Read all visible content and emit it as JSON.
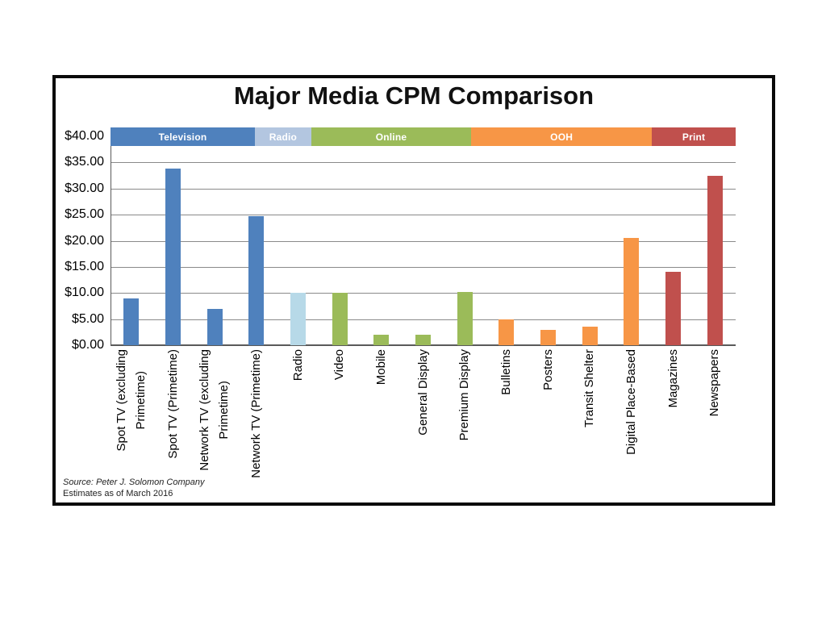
{
  "chart_data": {
    "type": "bar",
    "title": "Major Media CPM Comparison",
    "ylim": [
      0,
      40
    ],
    "y_tick_interval": 5,
    "grid": "horizontal",
    "legend_position": "top-band",
    "y_ticks": [
      {
        "label": "$40.00",
        "value": 40
      },
      {
        "label": "$35.00",
        "value": 35
      },
      {
        "label": "$30.00",
        "value": 30
      },
      {
        "label": "$25.00",
        "value": 25
      },
      {
        "label": "$20.00",
        "value": 20
      },
      {
        "label": "$15.00",
        "value": 15
      },
      {
        "label": "$10.00",
        "value": 10
      },
      {
        "label": "$5.00",
        "value": 5
      },
      {
        "label": "$0.00",
        "value": 0
      }
    ],
    "groups": [
      {
        "name": "Television",
        "band_color": "#4F81BD",
        "bar_color": "#4F81BD",
        "band_width_pct": 23.1
      },
      {
        "name": "Radio",
        "band_color": "#B3C6E0",
        "bar_color": "#B7D9E8",
        "band_width_pct": 9.0
      },
      {
        "name": "Online",
        "band_color": "#9BBB59",
        "bar_color": "#9BBB59",
        "band_width_pct": 25.6
      },
      {
        "name": "OOH",
        "band_color": "#F79646",
        "bar_color": "#F79646",
        "band_width_pct": 28.9
      },
      {
        "name": "Print",
        "band_color": "#C0504D",
        "bar_color": "#C0504D",
        "band_width_pct": 13.4
      }
    ],
    "bars": [
      {
        "label": "Spot TV (excluding\nPrimetime)",
        "group": "Television",
        "value": 9.0
      },
      {
        "label": "Spot TV (Primetime)",
        "group": "Television",
        "value": 33.75
      },
      {
        "label": "Network TV (excluding\nPrimetime)",
        "group": "Television",
        "value": 7.0
      },
      {
        "label": "Network TV (Primetime)",
        "group": "Television",
        "value": 24.75
      },
      {
        "label": "Radio",
        "group": "Radio",
        "value": 10.0
      },
      {
        "label": "Video",
        "group": "Online",
        "value": 10.0
      },
      {
        "label": "Mobile",
        "group": "Online",
        "value": 2.0
      },
      {
        "label": "General Display",
        "group": "Online",
        "value": 2.0
      },
      {
        "label": "Premium Display",
        "group": "Online",
        "value": 10.25
      },
      {
        "label": "Bulletins",
        "group": "OOH",
        "value": 5.0
      },
      {
        "label": "Posters",
        "group": "OOH",
        "value": 3.0
      },
      {
        "label": "Transit Shelter",
        "group": "OOH",
        "value": 3.5
      },
      {
        "label": "Digital Place-Based",
        "group": "OOH",
        "value": 20.5
      },
      {
        "label": "Magazines",
        "group": "Print",
        "value": 14.0
      },
      {
        "label": "Newspapers",
        "group": "Print",
        "value": 32.5
      }
    ],
    "source_note": {
      "line1": "Source: Peter J. Solomon Company",
      "line2": "Estimates as of March 2016"
    }
  }
}
